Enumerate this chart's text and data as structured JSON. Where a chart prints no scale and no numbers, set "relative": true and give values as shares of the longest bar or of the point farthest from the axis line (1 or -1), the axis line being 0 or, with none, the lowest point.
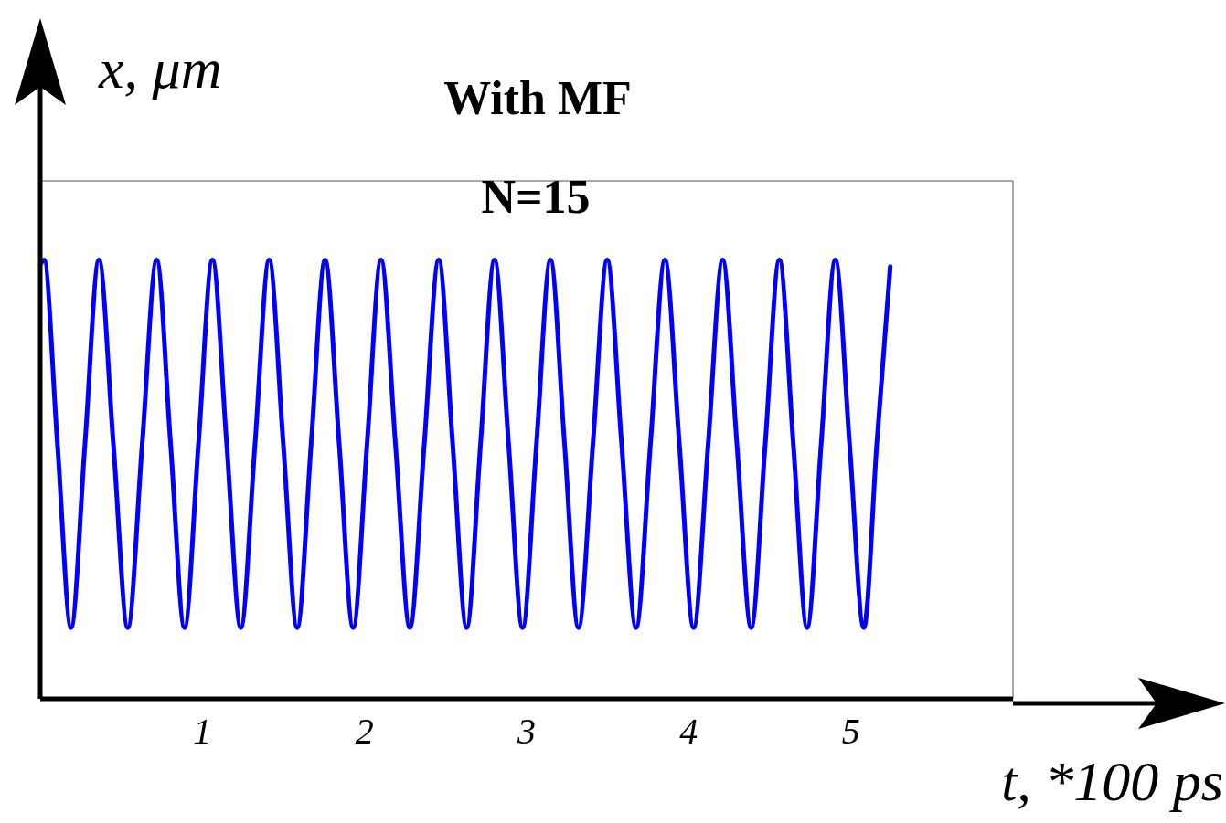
{
  "chart_data": {
    "type": "line",
    "title": "With MF",
    "subtitle": "N=15",
    "xlabel": "t, *100 ps",
    "ylabel": "x, μm",
    "relative": true,
    "xlim": [
      0,
      6
    ],
    "xticks": [
      1,
      2,
      3,
      4,
      5
    ],
    "grid": false,
    "legend": false,
    "marker": "none",
    "line_style": "solid",
    "series": [
      {
        "color": "#0000ff",
        "x": [
          0,
          0.023,
          0.106,
          0.19,
          0.276,
          0.362,
          0.451,
          0.54,
          0.629,
          0.718,
          0.804,
          0.89,
          0.976,
          1.062,
          1.15,
          1.237,
          1.325,
          1.412,
          1.499,
          1.585,
          1.671,
          1.757,
          1.844,
          1.93,
          2.016,
          2.102,
          2.191,
          2.28,
          2.369,
          2.458,
          2.544,
          2.63,
          2.716,
          2.802,
          2.889,
          2.975,
          3.061,
          3.147,
          3.234,
          3.32,
          3.409,
          3.497,
          3.586,
          3.675,
          3.764,
          3.853,
          3.942,
          4.03,
          4.12,
          4.209,
          4.297,
          4.385,
          4.472,
          4.559,
          4.645,
          4.73,
          4.817,
          4.904,
          4.992,
          5.08,
          5.16,
          5.243
        ],
        "values": [
          0.99,
          1,
          0.581,
          0.162,
          0.581,
          1,
          0.581,
          0.162,
          0.581,
          1,
          0.581,
          0.162,
          0.581,
          1,
          0.581,
          0.162,
          0.581,
          1,
          0.581,
          0.162,
          0.581,
          1,
          0.581,
          0.162,
          0.581,
          1,
          0.581,
          0.162,
          0.581,
          1,
          0.581,
          0.162,
          0.581,
          1,
          0.581,
          0.162,
          0.581,
          1,
          0.581,
          0.162,
          0.581,
          1,
          0.581,
          0.162,
          0.581,
          1,
          0.581,
          0.162,
          0.581,
          1,
          0.581,
          0.162,
          0.581,
          1,
          0.581,
          0.162,
          0.581,
          1,
          0.581,
          0.162,
          0.581,
          0.985
        ]
      }
    ]
  }
}
